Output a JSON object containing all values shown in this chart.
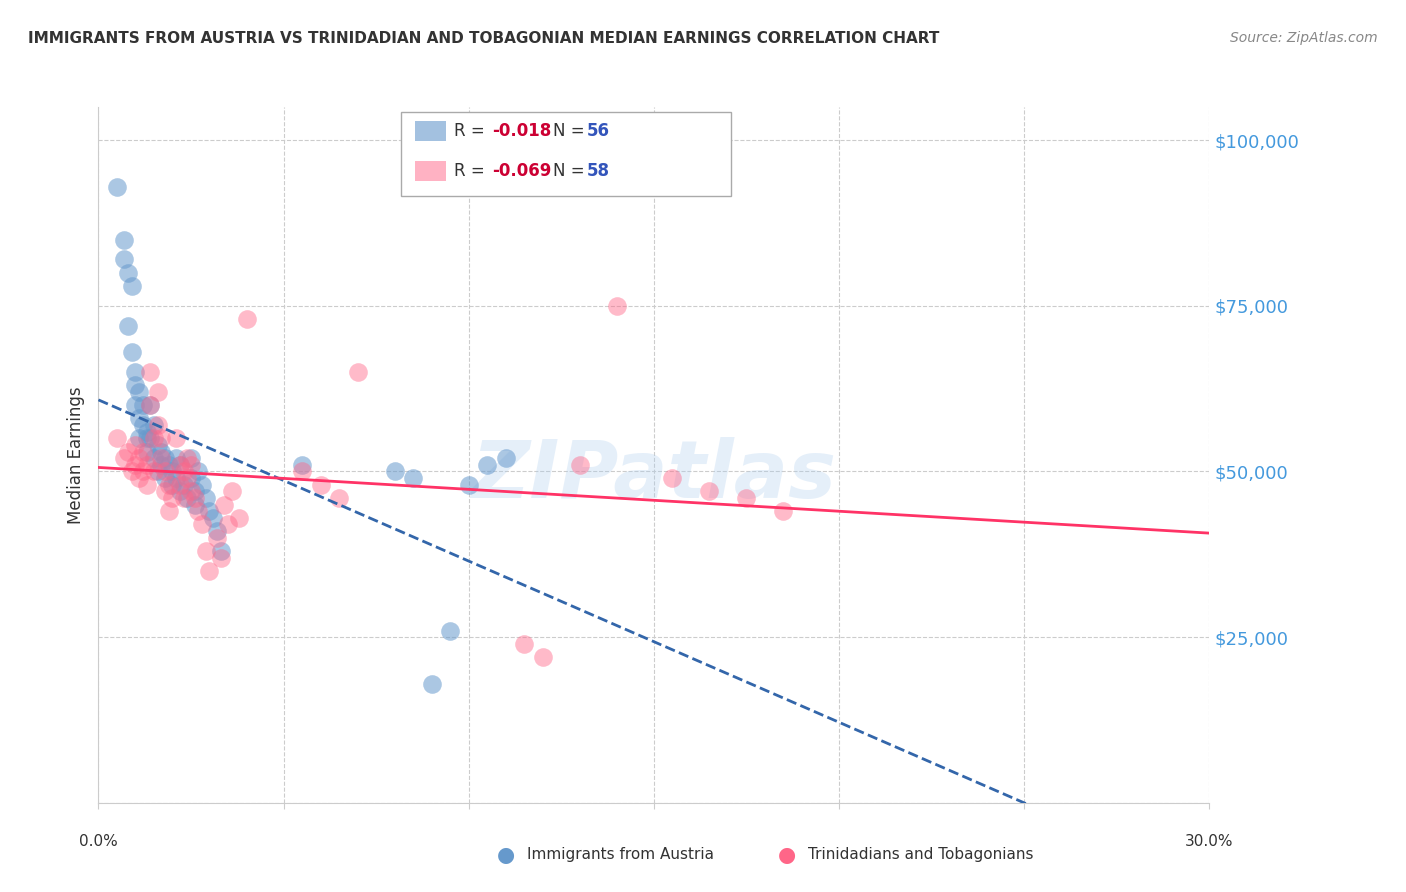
{
  "title": "IMMIGRANTS FROM AUSTRIA VS TRINIDADIAN AND TOBAGONIAN MEDIAN EARNINGS CORRELATION CHART",
  "source": "Source: ZipAtlas.com",
  "ylabel": "Median Earnings",
  "yticks": [
    0,
    25000,
    50000,
    75000,
    100000
  ],
  "ytick_labels": [
    "",
    "$25,000",
    "$50,000",
    "$75,000",
    "$100,000"
  ],
  "xmin": 0.0,
  "xmax": 0.3,
  "ymin": 0,
  "ymax": 105000,
  "blue_label": "Immigrants from Austria",
  "pink_label": "Trinidadians and Tobagonians",
  "blue_R": "-0.018",
  "blue_N": "56",
  "pink_R": "-0.069",
  "pink_N": "58",
  "blue_color": "#6699CC",
  "pink_color": "#FF6688",
  "blue_line_color": "#3366AA",
  "pink_line_color": "#FF3366",
  "watermark": "ZIPatlas",
  "blue_x": [
    0.005,
    0.007,
    0.007,
    0.009,
    0.008,
    0.008,
    0.009,
    0.01,
    0.01,
    0.01,
    0.011,
    0.011,
    0.011,
    0.012,
    0.012,
    0.013,
    0.013,
    0.013,
    0.014,
    0.014,
    0.015,
    0.015,
    0.016,
    0.016,
    0.017,
    0.017,
    0.018,
    0.018,
    0.019,
    0.02,
    0.02,
    0.021,
    0.021,
    0.022,
    0.022,
    0.023,
    0.024,
    0.025,
    0.025,
    0.026,
    0.026,
    0.027,
    0.028,
    0.029,
    0.03,
    0.031,
    0.032,
    0.033,
    0.055,
    0.08,
    0.085,
    0.09,
    0.095,
    0.1,
    0.105,
    0.11
  ],
  "blue_y": [
    93000,
    82000,
    85000,
    78000,
    80000,
    72000,
    68000,
    65000,
    63000,
    60000,
    62000,
    58000,
    55000,
    60000,
    57000,
    56000,
    55000,
    53000,
    60000,
    55000,
    57000,
    52000,
    54000,
    50000,
    53000,
    51000,
    52000,
    49000,
    51000,
    50000,
    48000,
    52000,
    49000,
    47000,
    51000,
    48000,
    46000,
    52000,
    49000,
    45000,
    47000,
    50000,
    48000,
    46000,
    44000,
    43000,
    41000,
    38000,
    51000,
    50000,
    49000,
    18000,
    26000,
    48000,
    51000,
    52000
  ],
  "pink_x": [
    0.005,
    0.007,
    0.008,
    0.009,
    0.01,
    0.01,
    0.011,
    0.011,
    0.012,
    0.012,
    0.013,
    0.013,
    0.014,
    0.014,
    0.015,
    0.015,
    0.016,
    0.016,
    0.017,
    0.017,
    0.018,
    0.018,
    0.019,
    0.019,
    0.02,
    0.021,
    0.022,
    0.022,
    0.023,
    0.023,
    0.024,
    0.024,
    0.025,
    0.025,
    0.026,
    0.027,
    0.028,
    0.029,
    0.03,
    0.032,
    0.033,
    0.034,
    0.035,
    0.036,
    0.038,
    0.04,
    0.055,
    0.06,
    0.065,
    0.07,
    0.115,
    0.12,
    0.13,
    0.14,
    0.155,
    0.165,
    0.175,
    0.185
  ],
  "pink_y": [
    55000,
    52000,
    53000,
    50000,
    54000,
    51000,
    52000,
    49000,
    53000,
    50000,
    51000,
    48000,
    65000,
    60000,
    55000,
    50000,
    62000,
    57000,
    55000,
    52000,
    50000,
    47000,
    48000,
    44000,
    46000,
    55000,
    51000,
    48000,
    46000,
    50000,
    52000,
    49000,
    51000,
    47000,
    46000,
    44000,
    42000,
    38000,
    35000,
    40000,
    37000,
    45000,
    42000,
    47000,
    43000,
    73000,
    50000,
    48000,
    46000,
    65000,
    24000,
    22000,
    51000,
    75000,
    49000,
    47000,
    46000,
    44000
  ]
}
